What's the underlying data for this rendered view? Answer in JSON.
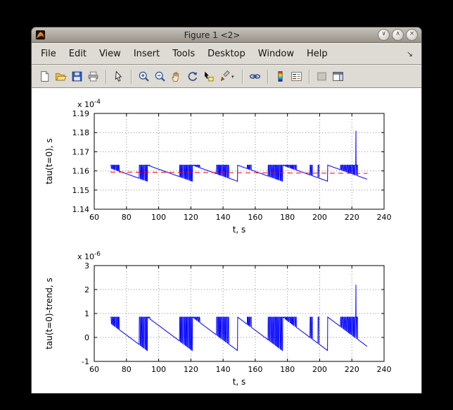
{
  "window": {
    "title": "Figure 1 <2>",
    "controls": [
      {
        "name": "shade-button",
        "glyph": "∨"
      },
      {
        "name": "maximize-button",
        "glyph": "∧"
      },
      {
        "name": "close-button",
        "glyph": "×"
      }
    ]
  },
  "menu": {
    "items": [
      "File",
      "Edit",
      "View",
      "Insert",
      "Tools",
      "Desktop",
      "Window",
      "Help"
    ],
    "dock_glyph": "↘"
  },
  "toolbar": {
    "sep_after": [
      3,
      4,
      10,
      11,
      13
    ],
    "buttons": [
      {
        "name": "new-figure-button",
        "icon": "new-document-icon"
      },
      {
        "name": "open-file-button",
        "icon": "open-folder-icon"
      },
      {
        "name": "save-figure-button",
        "icon": "save-icon"
      },
      {
        "name": "print-figure-button",
        "icon": "printer-icon"
      },
      {
        "name": "edit-plot-button",
        "icon": "cursor-arrow-icon"
      },
      {
        "name": "zoom-in-button",
        "icon": "zoom-in-icon"
      },
      {
        "name": "zoom-out-button",
        "icon": "zoom-out-icon"
      },
      {
        "name": "pan-button",
        "icon": "hand-icon"
      },
      {
        "name": "rotate-3d-button",
        "icon": "rotate-icon"
      },
      {
        "name": "data-cursor-button",
        "icon": "data-cursor-icon"
      },
      {
        "name": "brush-button",
        "icon": "brush-icon",
        "dropdown": true
      },
      {
        "name": "link-plot-button",
        "icon": "link-icon"
      },
      {
        "name": "insert-colorbar-button",
        "icon": "colorbar-icon"
      },
      {
        "name": "insert-legend-button",
        "icon": "legend-icon"
      },
      {
        "name": "hide-plot-tools-button",
        "icon": "hide-plot-tools-icon"
      },
      {
        "name": "show-plot-tools-button",
        "icon": "show-plot-tools-icon"
      }
    ]
  },
  "chart_data": [
    {
      "type": "line",
      "title": "",
      "xlabel": "t, s",
      "ylabel": "tau(t=0), s",
      "xlim": [
        60,
        240
      ],
      "xticks": [
        60,
        80,
        100,
        120,
        140,
        160,
        180,
        200,
        220,
        240
      ],
      "ylim": [
        1.14,
        1.19
      ],
      "yticks": [
        1.14,
        1.15,
        1.16,
        1.17,
        1.18,
        1.19
      ],
      "ytick_labels": [
        "1.14",
        "1.15",
        "1.16",
        "1.17",
        "1.18",
        "1.19"
      ],
      "exp_prefix": "x 10",
      "y_exponent": "-4",
      "grid": true,
      "series": [
        {
          "name": "tau(t=0)",
          "color": "#0000ff",
          "style": "solid",
          "signal": {
            "t_start": 70,
            "t_end": 229.5,
            "period": 28,
            "reset_t": 93,
            "ramp_top": 1.163,
            "ramp_bottom": 1.1546,
            "bursts": [
              [
                70,
                76
              ],
              [
                88,
                95
              ],
              [
                113,
                126
              ],
              [
                136,
                144
              ],
              [
                155,
                158
              ],
              [
                168,
                186
              ],
              [
                194,
                196
              ],
              [
                199,
                200
              ],
              [
                213,
                224
              ]
            ],
            "spike": {
              "t": 222.5,
              "value": 1.181
            }
          }
        },
        {
          "name": "trend",
          "color": "#ff0000",
          "style": "dashed",
          "line": {
            "t1": 70,
            "v1": 1.1594,
            "t2": 229.5,
            "v2": 1.1587
          }
        }
      ]
    },
    {
      "type": "line",
      "title": "",
      "xlabel": "t, s",
      "ylabel": "tau(t=0)-trend, s",
      "xlim": [
        60,
        240
      ],
      "xticks": [
        60,
        80,
        100,
        120,
        140,
        160,
        180,
        200,
        220,
        240
      ],
      "ylim": [
        -1,
        3
      ],
      "yticks": [
        -1,
        0,
        1,
        2,
        3
      ],
      "ytick_labels": [
        "-1",
        "0",
        "1",
        "2",
        "3"
      ],
      "exp_prefix": "x 10",
      "y_exponent": "-6",
      "grid": true,
      "series": [
        {
          "name": "tau(t=0) detrended",
          "color": "#0000ff",
          "style": "solid",
          "signal": {
            "t_start": 70,
            "t_end": 229.5,
            "period": 28,
            "reset_t": 93,
            "ramp_top": 0.85,
            "ramp_bottom": -0.55,
            "bursts": [
              [
                70,
                76
              ],
              [
                88,
                95
              ],
              [
                113,
                126
              ],
              [
                136,
                144
              ],
              [
                155,
                158
              ],
              [
                168,
                186
              ],
              [
                194,
                196
              ],
              [
                199,
                200
              ],
              [
                213,
                224
              ]
            ],
            "spike": {
              "t": 222.5,
              "value": 2.2
            }
          }
        }
      ]
    }
  ]
}
